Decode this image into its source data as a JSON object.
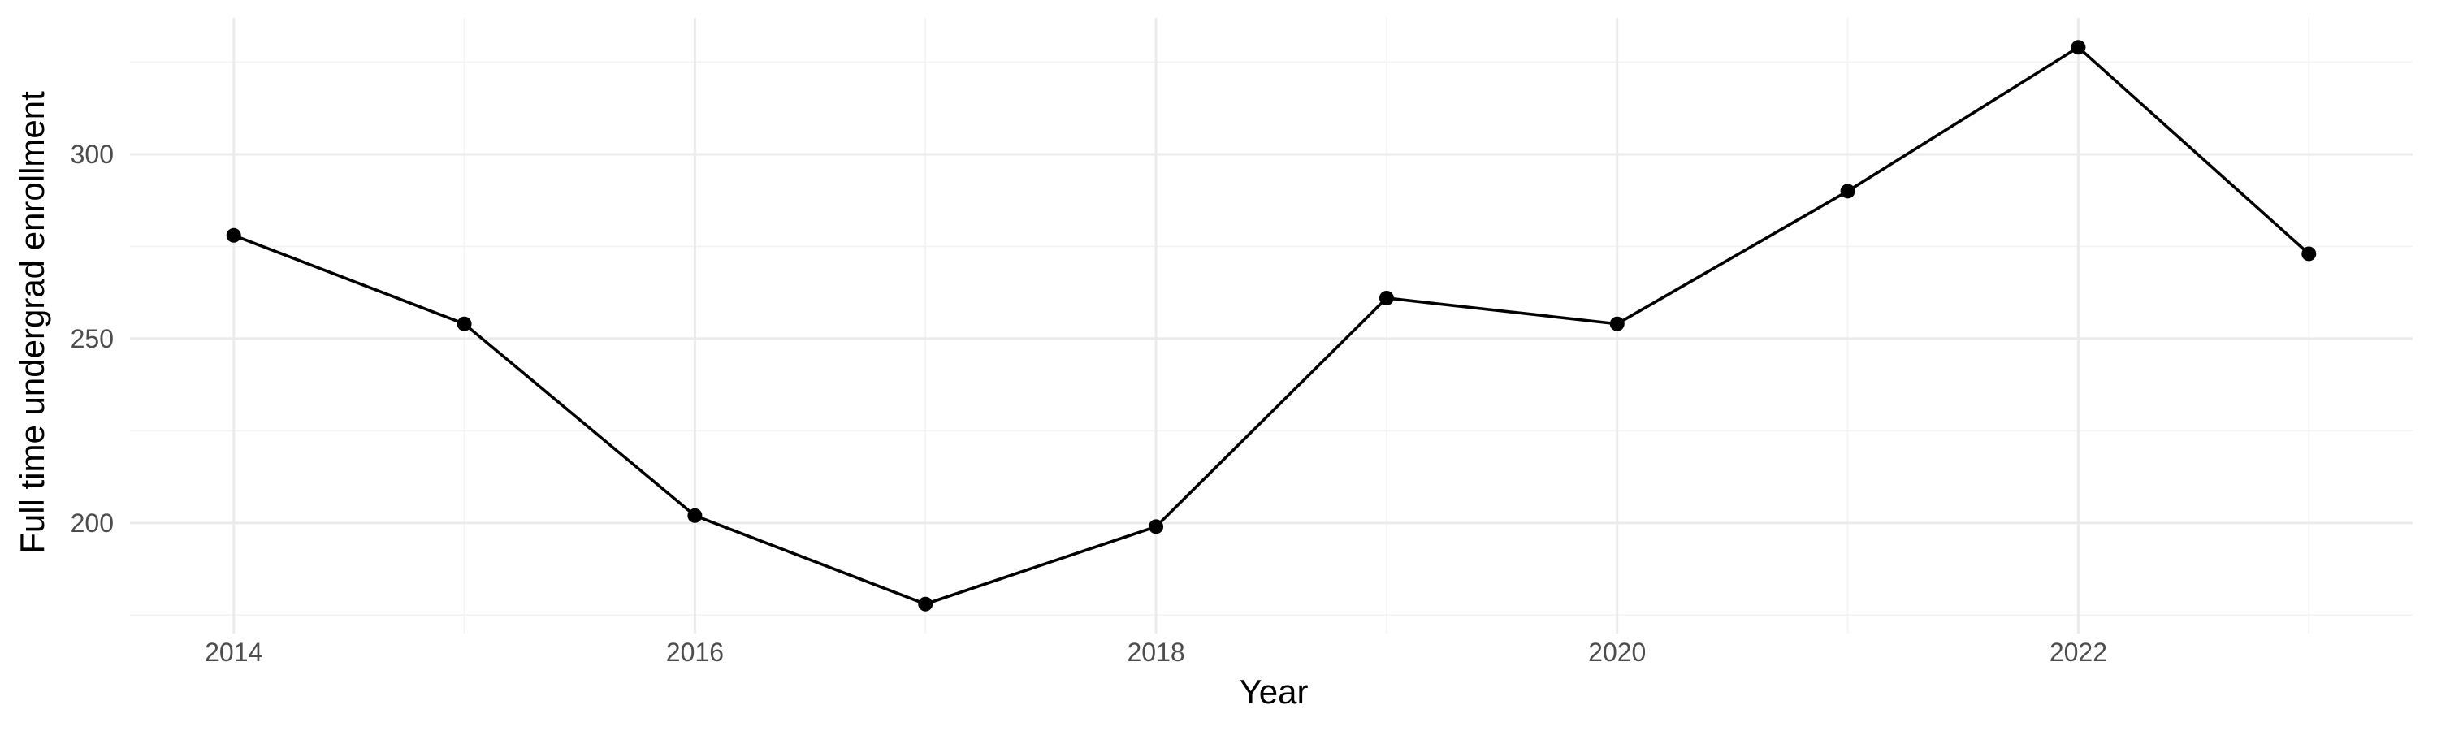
{
  "chart_data": {
    "type": "line",
    "title": "",
    "xlabel": "Year",
    "ylabel": "Full time undergrad enrollment",
    "x": [
      2014,
      2015,
      2016,
      2017,
      2018,
      2019,
      2020,
      2021,
      2022,
      2023
    ],
    "series": [
      {
        "values": [
          278,
          254,
          202,
          178,
          199,
          261,
          254,
          290,
          329,
          273
        ]
      }
    ],
    "xlim": [
      2013.55,
      2023.45
    ],
    "ylim": [
      170,
      337
    ],
    "x_ticks": [
      2014,
      2016,
      2018,
      2020,
      2022
    ],
    "x_tick_labels": [
      "2014",
      "2016",
      "2018",
      "2020",
      "2022"
    ],
    "y_ticks": [
      200,
      250,
      300
    ],
    "y_tick_labels": [
      "200",
      "250",
      "300"
    ],
    "x_minor_ticks": [
      2015,
      2017,
      2019,
      2021,
      2023
    ],
    "y_minor_ticks": [
      175,
      225,
      275,
      325
    ],
    "grid": true,
    "legend": "none",
    "colors": {
      "line": "#000000",
      "point": "#000000",
      "grid_major": "#ebebeb",
      "grid_minor": "#f3f3f3",
      "tick_text": "#4d4d4d",
      "axis_title": "#000000"
    }
  }
}
